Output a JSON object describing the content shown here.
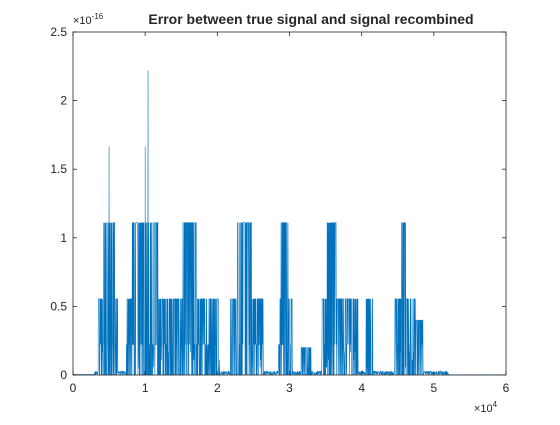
{
  "chart_data": {
    "type": "line",
    "title": "Error between true signal and signal recombined",
    "xlabel": "",
    "ylabel": "",
    "xlim": [
      0,
      60000
    ],
    "ylim": [
      0,
      2.5e-16
    ],
    "x_ticks": [
      0,
      1,
      2,
      3,
      4,
      5,
      6
    ],
    "y_ticks": [
      0,
      0.5,
      1,
      1.5,
      2,
      2.5
    ],
    "x_tick_labels": [
      "0",
      "1",
      "2",
      "3",
      "4",
      "5",
      "6"
    ],
    "y_tick_labels": [
      "0",
      "0.5",
      "1",
      "1.5",
      "2",
      "2.5"
    ],
    "x_exponent": "×10",
    "x_exponent_power": "4",
    "y_exponent": "×10",
    "y_exponent_power": "-16",
    "grid": false,
    "legend": "none",
    "series_color": "#0072BD",
    "series": [
      {
        "levels": [
          0,
          5.55e-18,
          1.11e-17,
          1.66e-17,
          2.22e-17
        ],
        "segments": [
          {
            "x": [
              0,
              3000
            ],
            "max": 5e-19
          },
          {
            "x": [
              3000,
              3500
            ],
            "max": 3e-18
          },
          {
            "x": [
              3500,
              4200
            ],
            "max": 5.55e-17
          },
          {
            "x": [
              4200,
              5800
            ],
            "max": 1.11e-16
          },
          {
            "x": [
              5800,
              6200
            ],
            "max": 5.55e-17
          },
          {
            "x": [
              6200,
              7300
            ],
            "max": 3e-18
          },
          {
            "x": [
              7300,
              8200
            ],
            "max": 5.55e-17
          },
          {
            "x": [
              8200,
              11800
            ],
            "max": 1.11e-16
          },
          {
            "x": [
              11800,
              13200
            ],
            "max": 5.55e-17
          },
          {
            "x": [
              13200,
              13800
            ],
            "max": 5.55e-17
          },
          {
            "x": [
              13800,
              15200
            ],
            "max": 5.55e-17
          },
          {
            "x": [
              15200,
              17200
            ],
            "max": 1.11e-16
          },
          {
            "x": [
              17200,
              19500
            ],
            "max": 5.55e-17
          },
          {
            "x": [
              19500,
              20300
            ],
            "max": 5.55e-17
          },
          {
            "x": [
              20300,
              21800
            ],
            "max": 3e-18
          },
          {
            "x": [
              21800,
              25500
            ],
            "max": 5.55e-17
          },
          {
            "x": [
              22800,
              24800
            ],
            "max": 1.11e-16
          },
          {
            "x": [
              25500,
              26400
            ],
            "max": 5.55e-17
          },
          {
            "x": [
              26400,
              28500
            ],
            "max": 3e-18
          },
          {
            "x": [
              28500,
              30400
            ],
            "max": 5.55e-17
          },
          {
            "x": [
              28800,
              29800
            ],
            "max": 1.11e-16
          },
          {
            "x": [
              30400,
              31600
            ],
            "max": 3e-18
          },
          {
            "x": [
              31600,
              33000
            ],
            "max": 2e-17
          },
          {
            "x": [
              33000,
              34500
            ],
            "max": 3e-18
          },
          {
            "x": [
              34500,
              39500
            ],
            "max": 5.55e-17
          },
          {
            "x": [
              35200,
              36500
            ],
            "max": 1.11e-16
          },
          {
            "x": [
              39500,
              40600
            ],
            "max": 3e-18
          },
          {
            "x": [
              40600,
              41600
            ],
            "max": 5.55e-17
          },
          {
            "x": [
              41600,
              44600
            ],
            "max": 3e-18
          },
          {
            "x": [
              44600,
              47500
            ],
            "max": 5.55e-17
          },
          {
            "x": [
              45500,
              46200
            ],
            "max": 1.11e-16
          },
          {
            "x": [
              47500,
              48600
            ],
            "max": 4e-17
          },
          {
            "x": [
              48600,
              52000
            ],
            "max": 3e-18
          },
          {
            "x": [
              52000,
              60000
            ],
            "max": 2e-19
          }
        ],
        "spikes": [
          {
            "x": 5000,
            "y": 1.665e-16
          },
          {
            "x": 10000,
            "y": 1.665e-16
          },
          {
            "x": 10400,
            "y": 2.22e-16
          },
          {
            "x": 9700,
            "y": 1.11e-16
          },
          {
            "x": 15900,
            "y": 1.11e-16
          },
          {
            "x": 23400,
            "y": 1.11e-16
          },
          {
            "x": 29200,
            "y": 1.11e-16
          },
          {
            "x": 35700,
            "y": 1.11e-16
          },
          {
            "x": 45800,
            "y": 1.11e-16
          }
        ]
      }
    ]
  }
}
